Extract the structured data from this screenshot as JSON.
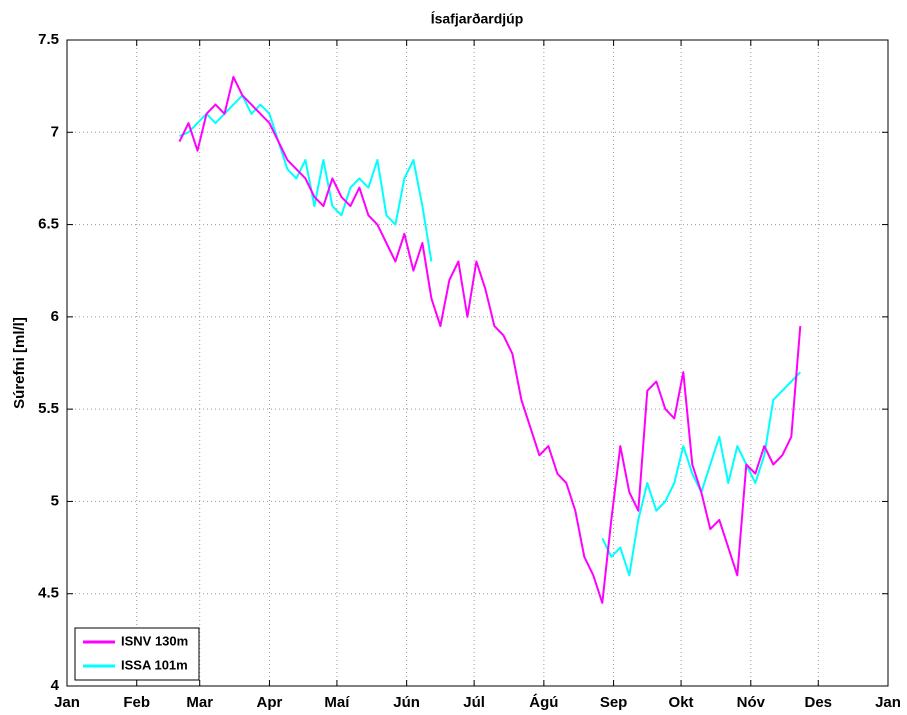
{
  "chart_data": {
    "type": "line",
    "title": "Ísafjarðardjúp",
    "y_label": "Súrefni [ml/l]",
    "x": [
      50,
      54,
      58,
      62,
      66,
      70,
      74,
      78,
      82,
      86,
      90,
      94,
      98,
      102,
      106,
      110,
      114,
      118,
      122,
      126,
      130,
      134,
      138,
      142,
      146,
      150,
      154,
      158,
      162,
      166,
      170,
      174,
      178,
      182,
      186,
      190,
      194,
      198,
      202,
      206,
      210,
      214,
      218,
      222,
      226,
      230,
      234,
      238,
      242,
      246,
      250,
      254,
      258,
      262,
      266,
      270,
      274,
      278,
      282,
      286,
      290,
      294,
      298,
      302,
      306,
      310,
      314,
      318,
      322,
      326
    ],
    "series": [
      {
        "name": "ISNV 130m",
        "color": "#ff00ff",
        "values": [
          6.95,
          7.05,
          6.9,
          7.1,
          7.15,
          7.1,
          7.3,
          7.2,
          7.15,
          7.1,
          7.05,
          6.95,
          6.85,
          6.8,
          6.75,
          6.65,
          6.6,
          6.75,
          6.65,
          6.6,
          6.7,
          6.55,
          6.5,
          6.4,
          6.3,
          6.45,
          6.25,
          6.4,
          6.1,
          5.95,
          6.2,
          6.3,
          6.0,
          6.3,
          6.15,
          5.95,
          5.9,
          5.8,
          5.55,
          5.4,
          5.25,
          5.3,
          5.15,
          5.1,
          4.95,
          4.7,
          4.6,
          4.45,
          4.9,
          5.3,
          5.05,
          4.95,
          5.6,
          5.65,
          5.5,
          5.45,
          5.7,
          5.2,
          5.05,
          4.85,
          4.9,
          4.75,
          4.6,
          5.2,
          5.15,
          5.3,
          5.2,
          5.25,
          5.35,
          5.95
        ]
      },
      {
        "name": "ISSA 101m",
        "color": "#00ffff",
        "values": [
          6.98,
          7.0,
          7.05,
          7.1,
          7.05,
          7.1,
          7.15,
          7.2,
          7.1,
          7.15,
          7.1,
          6.95,
          6.8,
          6.75,
          6.85,
          6.6,
          6.85,
          6.6,
          6.55,
          6.7,
          6.75,
          6.7,
          6.85,
          6.55,
          6.5,
          6.75,
          6.85,
          6.6,
          6.3,
          null,
          null,
          null,
          null,
          null,
          null,
          null,
          null,
          null,
          null,
          null,
          null,
          null,
          null,
          null,
          null,
          null,
          null,
          4.8,
          4.7,
          4.75,
          4.6,
          4.9,
          5.1,
          4.95,
          5.0,
          5.1,
          5.3,
          5.15,
          5.05,
          5.2,
          5.35,
          5.1,
          5.3,
          5.2,
          5.1,
          5.25,
          5.55,
          5.6,
          5.65,
          5.7
        ]
      }
    ],
    "xlim": [
      0,
      365
    ],
    "xticks": [
      {
        "value": 0,
        "label": "Jan"
      },
      {
        "value": 31,
        "label": "Feb"
      },
      {
        "value": 59,
        "label": "Mar"
      },
      {
        "value": 90,
        "label": "Apr"
      },
      {
        "value": 120,
        "label": "Maí"
      },
      {
        "value": 151,
        "label": "Jún"
      },
      {
        "value": 181,
        "label": "Júl"
      },
      {
        "value": 212,
        "label": "Ágú"
      },
      {
        "value": 243,
        "label": "Sep"
      },
      {
        "value": 273,
        "label": "Okt"
      },
      {
        "value": 304,
        "label": "Nóv"
      },
      {
        "value": 334,
        "label": "Des"
      },
      {
        "value": 365,
        "label": "Jan"
      }
    ],
    "ylim": [
      4,
      7.5
    ],
    "yticks": [
      4,
      4.5,
      5,
      5.5,
      6,
      6.5,
      7,
      7.5
    ],
    "grid": true,
    "legend": "lower left"
  }
}
